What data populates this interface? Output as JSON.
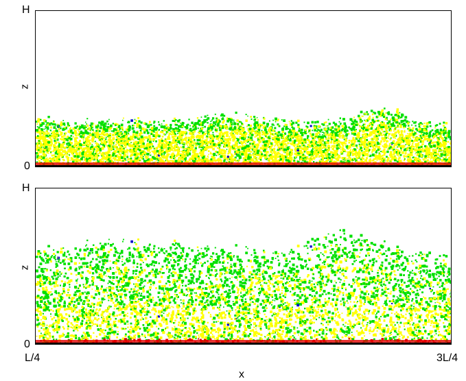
{
  "panels": [
    {
      "y_label": "z",
      "y_tick_top": "H",
      "y_tick_bottom": "0"
    },
    {
      "y_label": "z",
      "y_tick_top": "H",
      "y_tick_bottom": "0"
    }
  ],
  "x_axis": {
    "label": "x",
    "tick_left": "L/4",
    "tick_right": "3L/4"
  },
  "colors": {
    "red": "#e00000",
    "yellow": "#ffff00",
    "green": "#00e000",
    "blue": "#0000cc",
    "black": "#000000"
  }
}
